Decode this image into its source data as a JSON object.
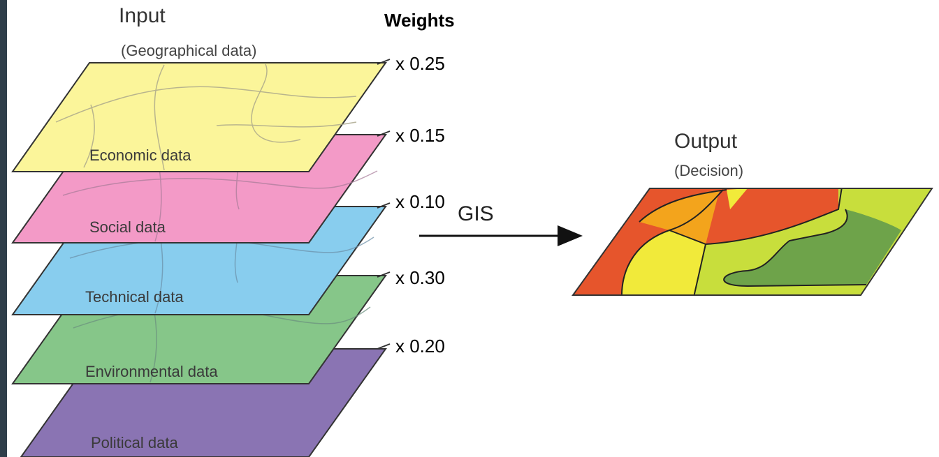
{
  "input": {
    "title": "Input",
    "subtitle": "(Geographical data)"
  },
  "weights_title": "Weights",
  "layers": [
    {
      "name": "Economic data",
      "weight": "x 0.25",
      "color": "#fbf59a"
    },
    {
      "name": "Social data",
      "weight": "x 0.15",
      "color": "#f39ac7"
    },
    {
      "name": "Technical data",
      "weight": "x 0.10",
      "color": "#88cdee"
    },
    {
      "name": "Environmental data",
      "weight": "x 0.30",
      "color": "#86c689"
    },
    {
      "name": "Political data",
      "weight": "x 0.20",
      "color": "#8a74b3"
    }
  ],
  "process_label": "GIS",
  "output": {
    "title": "Output",
    "subtitle": "(Decision)",
    "region_colors": [
      "#e6552c",
      "#f3a41c",
      "#f1ea3a",
      "#c8de3c",
      "#6ea34a",
      "#9acb3c"
    ]
  }
}
